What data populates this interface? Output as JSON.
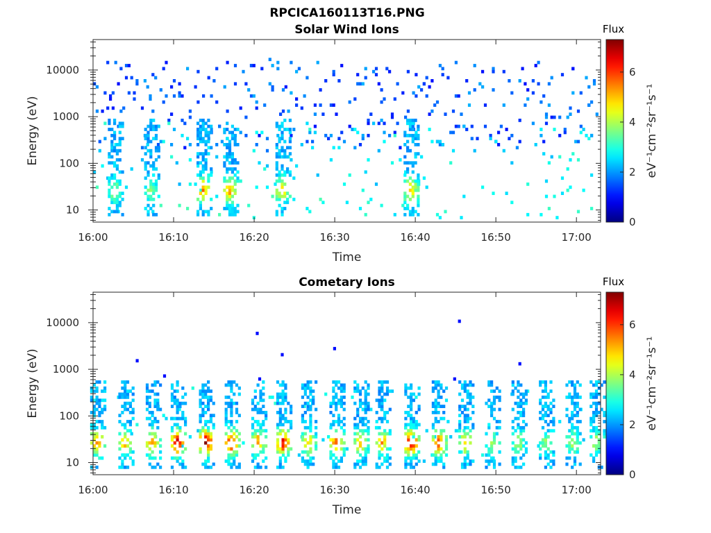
{
  "figure": {
    "title": "RPCICA160113T16.PNG"
  },
  "chart_data": [
    {
      "type": "heatmap",
      "title": "Solar Wind Ions",
      "xlabel": "Time",
      "ylabel": "Energy (eV)",
      "x_ticks": [
        "16:00",
        "16:10",
        "16:20",
        "16:30",
        "16:40",
        "16:50",
        "17:00"
      ],
      "x_range": [
        "16:00",
        "17:03"
      ],
      "y_scale": "log",
      "y_ticks": [
        10,
        100,
        1000,
        10000
      ],
      "y_tick_labels": [
        "10",
        "100",
        "1000",
        "10000"
      ],
      "y_range": [
        5.5,
        45000
      ],
      "colorbar": {
        "label": "Flux",
        "unit": "eV⁻¹cm⁻²sr⁻¹s⁻¹",
        "range": [
          0,
          7.3
        ],
        "ticks": [
          0,
          2,
          4,
          6
        ],
        "colormap": "jet"
      },
      "approximate": true,
      "description_of_data": "sparse counts: flux ~1-2 spread over 200-20000 eV; flux ~2-3 between 10 and 500 eV; flux ~4-6 bursts near 25 eV",
      "bursts_minutes": [
        2.5,
        7.0,
        13.5,
        16.8,
        23.3,
        39.2
      ],
      "bursts_peak_flux": [
        3.5,
        3.2,
        5.0,
        4.8,
        4.5,
        4.5
      ]
    },
    {
      "type": "heatmap",
      "title": "Cometary Ions",
      "xlabel": "Time",
      "ylabel": "Energy (eV)",
      "x_ticks": [
        "16:00",
        "16:10",
        "16:20",
        "16:30",
        "16:40",
        "16:50",
        "17:00"
      ],
      "x_range": [
        "16:00",
        "17:03"
      ],
      "y_scale": "log",
      "y_ticks": [
        10,
        100,
        1000,
        10000
      ],
      "y_tick_labels": [
        "10",
        "100",
        "1000",
        "10000"
      ],
      "y_range": [
        5.5,
        45000
      ],
      "colorbar": {
        "label": "Flux",
        "unit": "eV⁻¹cm⁻²sr⁻¹s⁻¹",
        "range": [
          0,
          7.3
        ],
        "ticks": [
          0,
          2,
          4,
          6
        ],
        "colormap": "jet"
      },
      "approximate": true,
      "description_of_data": "periodic flux bursts between ~10 eV and ~600 eV, most intense (flux ~6-7) near 20-30 eV",
      "bursts_minutes": [
        0.3,
        3.8,
        7.2,
        10.3,
        13.8,
        17.0,
        20.3,
        23.4,
        26.5,
        30.0,
        33.0,
        35.7,
        39.3,
        42.7,
        46.0,
        49.3,
        52.6,
        56.0,
        59.3,
        62.3
      ],
      "bursts_peak_flux": [
        5.2,
        4.8,
        5.0,
        6.5,
        7.0,
        6.0,
        5.0,
        6.0,
        4.5,
        5.5,
        4.5,
        4.8,
        6.5,
        5.5,
        4.5,
        3.5,
        3.5,
        3.2,
        3.5,
        3.5
      ]
    }
  ]
}
